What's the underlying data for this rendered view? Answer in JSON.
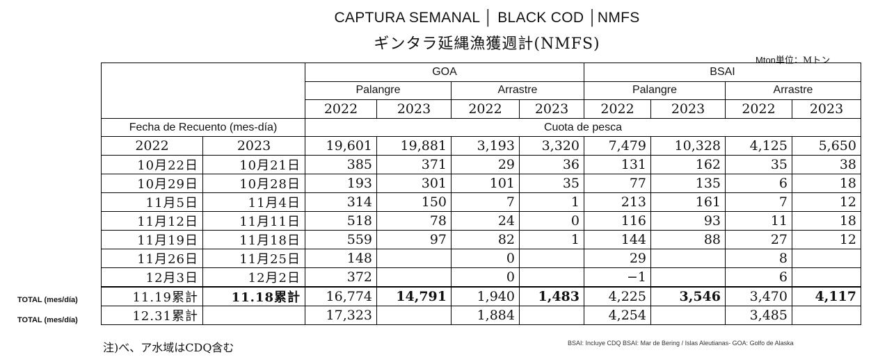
{
  "title": "CAPTURA SEMANAL │ BLACK COD │NMFS",
  "subtitle": "ギンタラ延縄漁獲週計(NMFS)",
  "unit": {
    "en": "Mton",
    "jp": "単位：Mトン"
  },
  "header": {
    "regions": [
      "GOA",
      "BSAI"
    ],
    "gears": [
      "Palangre",
      "Arrastre",
      "Palangre",
      "Arrastre"
    ],
    "years": [
      "2022",
      "2023",
      "2022",
      "2023",
      "2022",
      "2023",
      "2022",
      "2023"
    ],
    "date_label": "Fecha de Recuento (mes-día)",
    "quota_label": "Cuota de pesca",
    "date_years": [
      "2022",
      "2023"
    ]
  },
  "quota": [
    "19,601",
    "19,881",
    "3,193",
    "3,320",
    "7,479",
    "10,328",
    "4,125",
    "5,650"
  ],
  "rows": [
    {
      "d1": "10月22日",
      "d2": "10月21日",
      "v": [
        "385",
        "371",
        "29",
        "36",
        "131",
        "162",
        "35",
        "38"
      ]
    },
    {
      "d1": "10月29日",
      "d2": "10月28日",
      "v": [
        "193",
        "301",
        "101",
        "35",
        "77",
        "135",
        "6",
        "18"
      ]
    },
    {
      "d1": "11月5日",
      "d2": "11月4日",
      "v": [
        "314",
        "150",
        "7",
        "1",
        "213",
        "161",
        "7",
        "12"
      ]
    },
    {
      "d1": "11月12日",
      "d2": "11月11日",
      "v": [
        "518",
        "78",
        "24",
        "0",
        "116",
        "93",
        "11",
        "18"
      ]
    },
    {
      "d1": "11月19日",
      "d2": "11月18日",
      "v": [
        "559",
        "97",
        "82",
        "1",
        "144",
        "88",
        "27",
        "12"
      ]
    },
    {
      "d1": "11月26日",
      "d2": "11月25日",
      "v": [
        "148",
        "",
        "0",
        "",
        "29",
        "",
        "8",
        ""
      ]
    },
    {
      "d1": "12月3日",
      "d2": "12月2日",
      "v": [
        "372",
        "",
        "0",
        "",
        "−1",
        "",
        "6",
        ""
      ]
    }
  ],
  "totals": [
    {
      "label": "TOTAL (mes/día)",
      "d1": "11.19累計",
      "d2": "11.18累計",
      "v": [
        "16,774",
        "14,791",
        "1,940",
        "1,483",
        "4,225",
        "3,546",
        "3,470",
        "4,117"
      ]
    },
    {
      "label": "TOTAL (mes/día)",
      "d1": "12.31累計",
      "d2": "",
      "v": [
        "17,323",
        "",
        "1,884",
        "",
        "4,254",
        "",
        "3,485",
        ""
      ]
    }
  ],
  "footnote_jp": "注)べ、ア水域はCDQ含む",
  "footnote_en": "BSAI: Incluye CDQ BSAI: Mar de Bering / Islas Aleutianas- GOA: Golfo de Alaska"
}
